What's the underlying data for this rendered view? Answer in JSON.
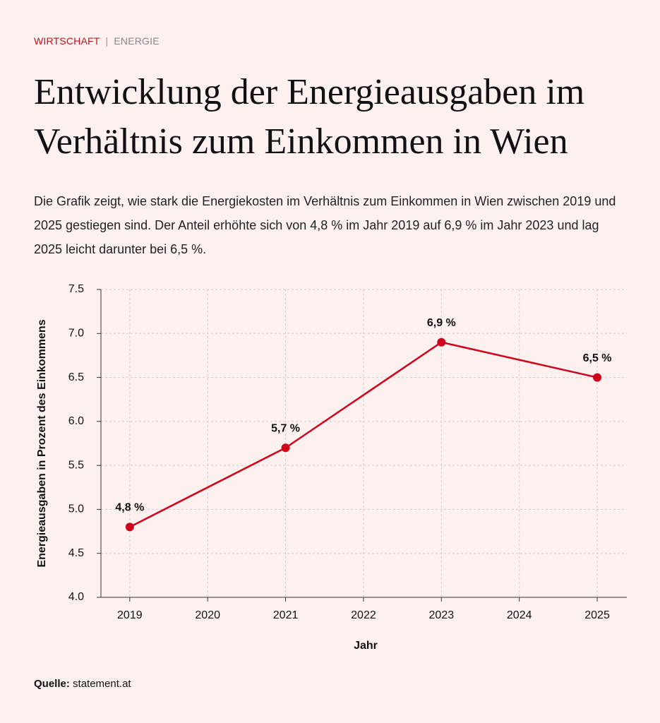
{
  "header": {
    "section": "WIRTSCHAFT",
    "separator": "|",
    "topic": "ENERGIE"
  },
  "title": "Entwicklung der Energieausgaben im Verhältnis zum Einkommen in Wien",
  "description": "Die Grafik zeigt, wie stark die Energiekosten im Verhältnis zum Einkommen in Wien zwischen 2019 und 2025 gestiegen sind. Der Anteil erhöhte sich von 4,8 % im Jahr 2019 auf 6,9 % im Jahr 2023 und lag 2025 leicht darunter bei 6,5 %.",
  "source": {
    "label": "Quelle:",
    "text": "statement.at"
  },
  "chart_data": {
    "type": "line",
    "x_label": "Jahr",
    "y_label": "Energieausgaben in Prozent des Einkommens",
    "x": [
      2019,
      2021,
      2023,
      2025
    ],
    "values": [
      4.8,
      5.7,
      6.9,
      6.5
    ],
    "value_labels": [
      "4,8 %",
      "5,7 %",
      "6,9 %",
      "6,5 %"
    ],
    "color": "#d0021b",
    "xlim": [
      2018.63,
      2025.38
    ],
    "xticks": [
      2019,
      2020,
      2021,
      2022,
      2023,
      2024,
      2025
    ],
    "ylim": [
      4,
      7.5
    ],
    "yticks": [
      {
        "value": 4,
        "label": "4.0"
      },
      {
        "value": 4.5,
        "label": "4.5"
      },
      {
        "value": 5,
        "label": "5.0"
      },
      {
        "value": 5.5,
        "label": "5.5"
      },
      {
        "value": 6,
        "label": "6.0"
      },
      {
        "value": 6.5,
        "label": "6.5"
      },
      {
        "value": 7,
        "label": "7.0"
      },
      {
        "value": 7.5,
        "label": "7.5"
      }
    ],
    "grid": true
  }
}
